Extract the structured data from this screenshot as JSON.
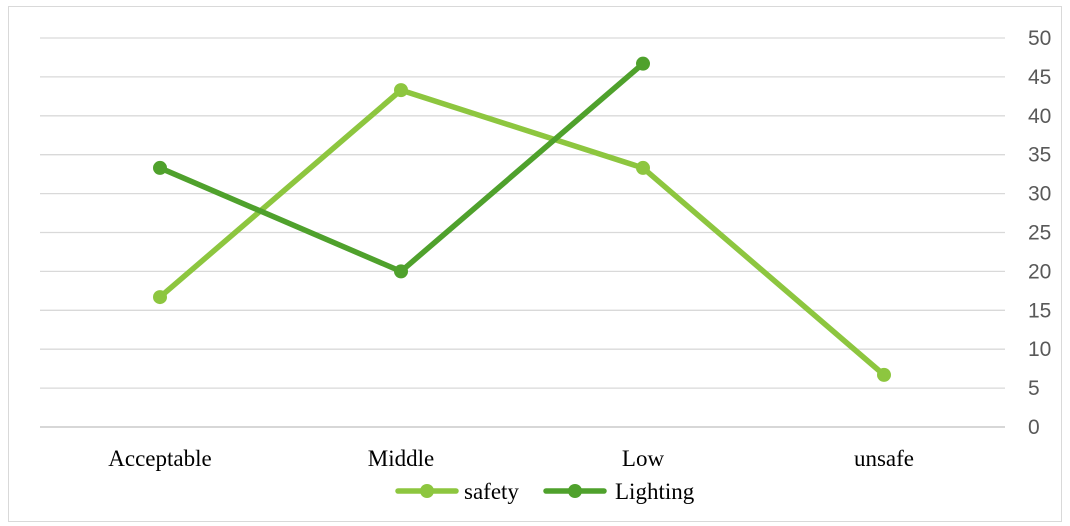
{
  "chart_data": {
    "type": "line",
    "categories": [
      "Acceptable",
      "Middle",
      "Low",
      "unsafe"
    ],
    "series": [
      {
        "name": "safety",
        "color": "#8dc63f",
        "values": [
          16.7,
          43.3,
          33.3,
          6.7
        ]
      },
      {
        "name": "Lighting",
        "color": "#4fa12c",
        "values": [
          33.3,
          20,
          46.7,
          null
        ]
      }
    ],
    "y_ticks": [
      "0",
      "5",
      "10",
      "15",
      "20",
      "25",
      "30",
      "35",
      "40",
      "45",
      "50"
    ],
    "ylim": [
      0,
      50
    ],
    "y_axis_side": "right",
    "grid": true,
    "legend": "bottom",
    "title": "",
    "xlabel": "",
    "ylabel": ""
  }
}
